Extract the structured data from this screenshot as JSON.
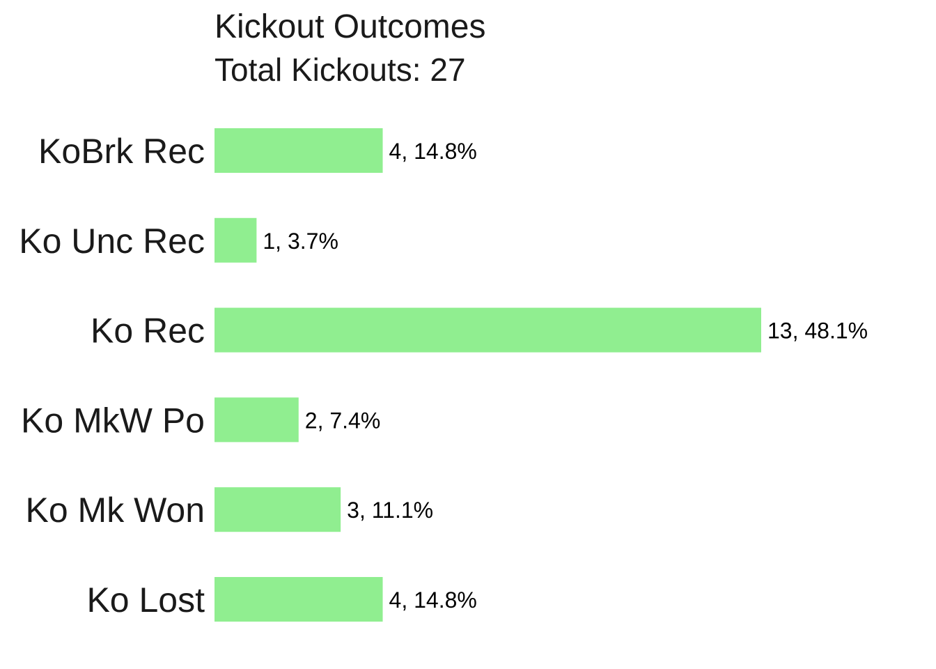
{
  "chart_data": {
    "type": "bar",
    "orientation": "horizontal",
    "title": "Kickout Outcomes",
    "subtitle": "Total Kickouts: 27",
    "categories": [
      "KoBrk Rec",
      "Ko Unc Rec",
      "Ko Rec",
      "Ko MkW Po",
      "Ko Mk Won",
      "Ko Lost"
    ],
    "values": [
      4,
      1,
      13,
      2,
      3,
      4
    ],
    "labels": [
      "4, 14.8%",
      "1, 3.7%",
      "13, 48.1%",
      "2, 7.4%",
      "3, 11.1%",
      "4, 14.8%"
    ],
    "xlim": [
      0,
      13
    ],
    "bar_color": "#90EE90",
    "grid": false,
    "legend": false
  }
}
